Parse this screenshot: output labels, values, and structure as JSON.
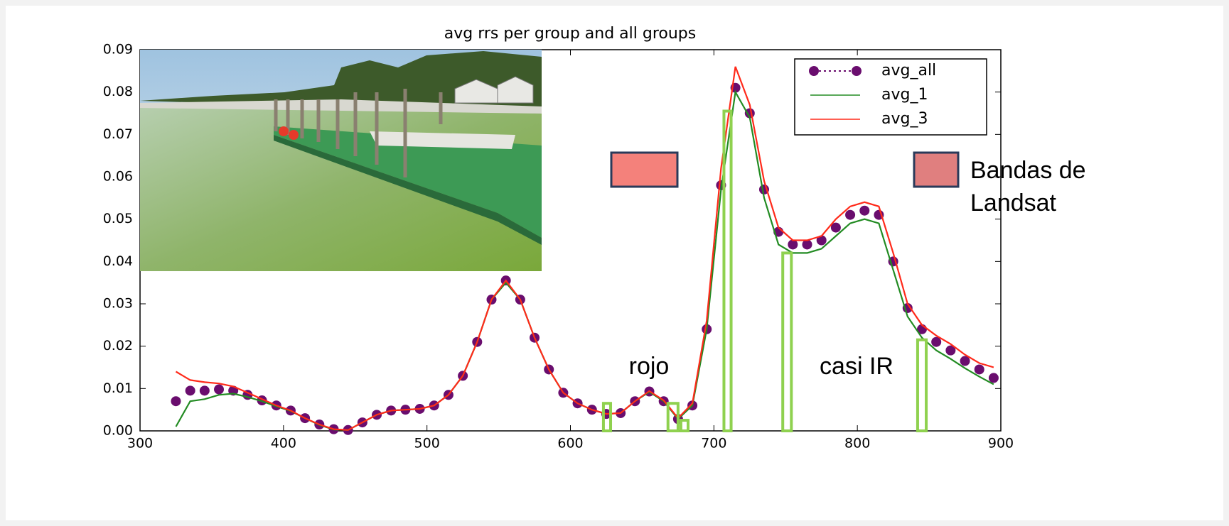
{
  "chart_data": {
    "type": "line",
    "title": "avg rrs per group and all groups",
    "x": [
      325,
      335,
      345,
      355,
      365,
      375,
      385,
      395,
      405,
      415,
      425,
      435,
      445,
      455,
      465,
      475,
      485,
      495,
      505,
      515,
      525,
      535,
      545,
      555,
      565,
      575,
      585,
      595,
      605,
      615,
      625,
      635,
      645,
      655,
      665,
      675,
      685,
      695,
      705,
      715,
      725,
      735,
      745,
      755,
      765,
      775,
      785,
      795,
      805,
      815,
      825,
      835,
      845,
      855,
      865,
      875,
      885,
      895
    ],
    "series": [
      {
        "name": "avg_all",
        "color": "#6a0d6e",
        "marker": "dots",
        "values": [
          0.007,
          0.0095,
          0.0095,
          0.0098,
          0.0095,
          0.0085,
          0.0072,
          0.006,
          0.0048,
          0.003,
          0.0015,
          0.0004,
          0.0002,
          0.002,
          0.0038,
          0.0048,
          0.005,
          0.0052,
          0.006,
          0.0085,
          0.013,
          0.021,
          0.031,
          0.0355,
          0.031,
          0.022,
          0.0145,
          0.009,
          0.0065,
          0.005,
          0.004,
          0.0042,
          0.007,
          0.0093,
          0.007,
          0.0028,
          0.006,
          0.024,
          0.058,
          0.081,
          0.075,
          0.057,
          0.047,
          0.044,
          0.044,
          0.045,
          0.048,
          0.051,
          0.052,
          0.051,
          0.04,
          0.029,
          0.024,
          0.021,
          0.019,
          0.0165,
          0.0145,
          0.0125
        ]
      },
      {
        "name": "avg_1",
        "color": "#228b22",
        "values": [
          0.001,
          0.007,
          0.0075,
          0.0085,
          0.0088,
          0.008,
          0.007,
          0.0058,
          0.0047,
          0.003,
          0.0014,
          0.0003,
          0.0002,
          0.002,
          0.0038,
          0.0048,
          0.005,
          0.0052,
          0.006,
          0.0085,
          0.013,
          0.021,
          0.031,
          0.035,
          0.031,
          0.022,
          0.0145,
          0.009,
          0.0065,
          0.005,
          0.004,
          0.0042,
          0.007,
          0.0092,
          0.007,
          0.0028,
          0.006,
          0.024,
          0.057,
          0.08,
          0.074,
          0.055,
          0.044,
          0.042,
          0.042,
          0.043,
          0.046,
          0.049,
          0.05,
          0.049,
          0.038,
          0.027,
          0.022,
          0.019,
          0.017,
          0.0148,
          0.0128,
          0.011
        ]
      },
      {
        "name": "avg_3",
        "color": "#ff2a1a",
        "values": [
          0.014,
          0.012,
          0.0115,
          0.0112,
          0.0105,
          0.009,
          0.0075,
          0.006,
          0.0048,
          0.003,
          0.0015,
          0.0004,
          0.0002,
          0.002,
          0.0038,
          0.0048,
          0.005,
          0.0052,
          0.006,
          0.0085,
          0.013,
          0.021,
          0.031,
          0.0355,
          0.031,
          0.022,
          0.0145,
          0.009,
          0.0065,
          0.005,
          0.004,
          0.0042,
          0.007,
          0.0094,
          0.0072,
          0.003,
          0.0065,
          0.026,
          0.062,
          0.086,
          0.077,
          0.059,
          0.048,
          0.045,
          0.045,
          0.046,
          0.05,
          0.053,
          0.054,
          0.053,
          0.042,
          0.03,
          0.025,
          0.0225,
          0.0205,
          0.018,
          0.016,
          0.015
        ]
      }
    ],
    "xlim": [
      300,
      900
    ],
    "ylim": [
      0,
      0.09
    ],
    "xticks": [
      300,
      400,
      500,
      600,
      700,
      800,
      900
    ],
    "yticks": [
      {
        "value": 0,
        "label": "0.00"
      },
      0.01,
      0.02,
      0.03,
      0.04,
      0.05,
      0.06,
      0.07,
      0.08,
      0.09
    ],
    "legend": "upper right",
    "band_color": "#8fd14f",
    "bands": [
      {
        "x": [
          623,
          628
        ],
        "top": 0.0065
      },
      {
        "x": [
          668,
          675
        ],
        "top": 0.0065
      },
      {
        "x": [
          677,
          682
        ],
        "top": 0.0025
      },
      {
        "x": [
          707,
          712
        ],
        "top": 0.0755
      },
      {
        "x": [
          748,
          754
        ],
        "top": 0.042
      },
      {
        "x": [
          842,
          848
        ],
        "top": 0.0215
      }
    ],
    "annotations": {
      "red": "rojo",
      "nir": "casi IR",
      "landsat": "Bandas de Landsat"
    }
  }
}
